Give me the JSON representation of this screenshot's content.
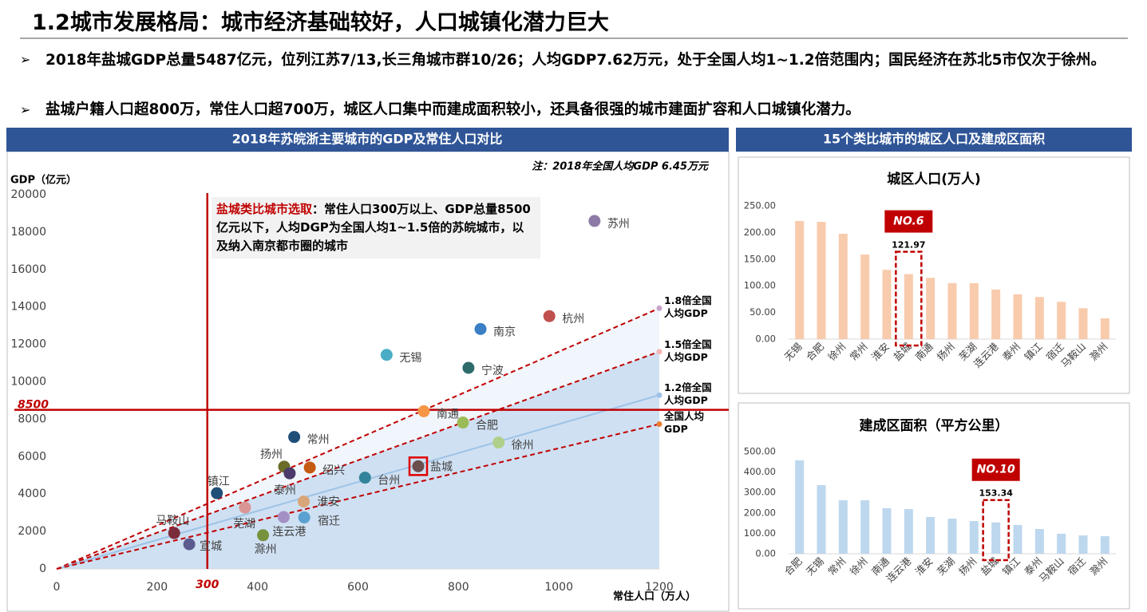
{
  "header": {
    "title": "1.2城市发展格局：城市经济基础较好，人口城镇化潜力巨大"
  },
  "bullets": [
    "2018年盐城GDP总量5487亿元，位列江苏7/13,长三角城市群10/26；人均GDP7.62万元，处于全国人均1~1.2倍范围内；国民经济在苏北5市仅次于徐州。",
    "盐城户籍人口超800万，常住人口超700万，城区人口集中而建成面积较小，还具备很强的城市建面扩容和人口城镇化潜力。"
  ],
  "panels": [
    "2018年苏皖浙主要城市的GDP及常住人口对比",
    "15个类比城市的城区人口及建成区面积"
  ],
  "chart_data": [
    {
      "type": "scatter",
      "note": "注：2018年全国人均GDP 6.45万元",
      "ylabel": "GDP（亿元）",
      "xlabel": "常住人口（万人）",
      "xlim": [
        0,
        1200
      ],
      "ylim": [
        0,
        20000
      ],
      "xticks": [
        0,
        200,
        400,
        600,
        800,
        1000,
        1200
      ],
      "yticks": [
        0,
        2000,
        4000,
        6000,
        8000,
        10000,
        12000,
        14000,
        16000,
        18000,
        20000
      ],
      "points": [
        {
          "name": "苏州",
          "x": 1071,
          "y": 18597,
          "color": "#8e7aa6"
        },
        {
          "name": "杭州",
          "x": 981,
          "y": 13509,
          "color": "#c0504d"
        },
        {
          "name": "南京",
          "x": 844,
          "y": 12820,
          "color": "#3b7fc4"
        },
        {
          "name": "无锡",
          "x": 657,
          "y": 11439,
          "color": "#4bacc6"
        },
        {
          "name": "宁波",
          "x": 820,
          "y": 10746,
          "color": "#2e6b6b"
        },
        {
          "name": "南通",
          "x": 731,
          "y": 8427,
          "color": "#f79646"
        },
        {
          "name": "合肥",
          "x": 809,
          "y": 7823,
          "color": "#9bbb59"
        },
        {
          "name": "徐州",
          "x": 880,
          "y": 6755,
          "color": "#afd08a"
        },
        {
          "name": "常州",
          "x": 473,
          "y": 7050,
          "color": "#1f4e79"
        },
        {
          "name": "扬州",
          "x": 453,
          "y": 5466,
          "color": "#6b6b2a"
        },
        {
          "name": "绍兴",
          "x": 504,
          "y": 5417,
          "color": "#c55a11"
        },
        {
          "name": "泰州",
          "x": 464,
          "y": 5108,
          "color": "#4b3a6b"
        },
        {
          "name": "盐城",
          "x": 720,
          "y": 5487,
          "color": "#6b4e4e"
        },
        {
          "name": "台州",
          "x": 614,
          "y": 4875,
          "color": "#31849b"
        },
        {
          "name": "镇江",
          "x": 319,
          "y": 4050,
          "color": "#1f4e79"
        },
        {
          "name": "芜湖",
          "x": 375,
          "y": 3279,
          "color": "#d99694"
        },
        {
          "name": "淮安",
          "x": 492,
          "y": 3601,
          "color": "#d9a679"
        },
        {
          "name": "宿迁",
          "x": 493,
          "y": 2750,
          "color": "#5aa0d0"
        },
        {
          "name": "连云港",
          "x": 452,
          "y": 2771,
          "color": "#a48fc4"
        },
        {
          "name": "滁州",
          "x": 411,
          "y": 1801,
          "color": "#76923c"
        },
        {
          "name": "马鞍山",
          "x": 234,
          "y": 1918,
          "color": "#7b2c3b"
        },
        {
          "name": "宣城",
          "x": 264,
          "y": 1317,
          "color": "#5b5b8f"
        }
      ],
      "highlight_index": 12,
      "lines": [
        {
          "name": "1.8倍全国人均GDP",
          "x": [
            0,
            1200
          ],
          "values": [
            0,
            13932
          ],
          "color": "#c00000",
          "marker_color": "#c9a3c9",
          "dashed": true,
          "shade": "#eef4fb"
        },
        {
          "name": "1.5倍全国人均GDP",
          "x": [
            0,
            1200
          ],
          "values": [
            0,
            11610
          ],
          "color": "#c00000",
          "marker_color": "#f4b6b6",
          "dashed": true,
          "shade": "#c9dcf0"
        },
        {
          "name": "1.2倍全国人均GDP",
          "x": [
            0,
            1200
          ],
          "values": [
            0,
            9288
          ],
          "color": "#9dc3e6",
          "marker_color": "#9dc3e6",
          "dashed": false
        },
        {
          "name": "全国人均GDP",
          "x": [
            0,
            1200
          ],
          "values": [
            0,
            7740
          ],
          "color": "#c00000",
          "marker_color": "#ed7d31",
          "dashed": true
        }
      ],
      "reference_lines": [
        {
          "axis": "y",
          "value": 8500
        },
        {
          "axis": "x",
          "value": 300
        }
      ],
      "reference_color": "#c00000",
      "callout": {
        "title": "盐城类比城市选取",
        "text": "：常住人口300万以上、GDP总量8500亿元以下，人均DGP为全国人均1~1.5倍的苏皖城市，以及纳入南京都市圈的城市"
      }
    },
    {
      "type": "bar",
      "title": "城区人口(万人)",
      "color": "#f8cbad",
      "categories": [
        "无锡",
        "合肥",
        "徐州",
        "常州",
        "淮安",
        "盐城",
        "南通",
        "扬州",
        "芜湖",
        "连云港",
        "泰州",
        "镇江",
        "宿迁",
        "马鞍山",
        "滁州"
      ],
      "values": [
        221.6,
        220,
        197.6,
        158.7,
        130,
        121.97,
        115,
        105,
        105,
        93,
        84,
        79,
        70,
        58,
        39
      ],
      "ylim": [
        0,
        250
      ],
      "yticks": [
        {
          "value": 0,
          "label": "0.00"
        },
        {
          "value": 50,
          "label": "50.00"
        },
        {
          "value": 100,
          "label": "100.00"
        },
        {
          "value": 150,
          "label": "150.00"
        },
        {
          "value": 200,
          "label": "200.00"
        },
        {
          "value": 250,
          "label": "250.00"
        }
      ],
      "highlight_index": 5,
      "highlight_label": "NO.6"
    },
    {
      "type": "bar",
      "title": "建成区面积（平方公里）",
      "color": "#bdd7ee",
      "categories": [
        "合肥",
        "无锡",
        "常州",
        "徐州",
        "南通",
        "连云港",
        "淮安",
        "芜湖",
        "扬州",
        "盐城",
        "镇江",
        "泰州",
        "马鞍山",
        "宿迁",
        "滁州"
      ],
      "values": [
        457,
        336,
        262,
        262,
        223,
        219,
        180,
        172,
        160,
        153.34,
        141,
        121,
        98,
        90,
        86
      ],
      "ylim": [
        0,
        500
      ],
      "yticks": [
        {
          "value": 0,
          "label": "0.00"
        },
        {
          "value": 100,
          "label": "100.00"
        },
        {
          "value": 200,
          "label": "200.00"
        },
        {
          "value": 300,
          "label": "300.00"
        },
        {
          "value": 400,
          "label": "400.00"
        },
        {
          "value": 500,
          "label": "500.00"
        }
      ],
      "highlight_index": 9,
      "highlight_label": "NO.10"
    }
  ]
}
